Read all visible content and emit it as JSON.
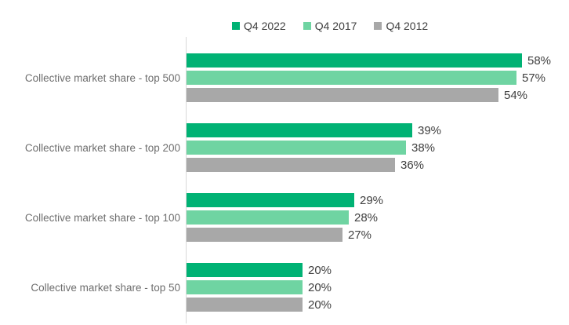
{
  "colors": {
    "background": "#ffffff",
    "axis_line": "#d9d9d9",
    "category_text": "#6e6e6e",
    "value_text": "#3f3f3f",
    "legend_text": "#404040",
    "series_q4_2022": "#00b274",
    "series_q4_2017": "#6fd4a2",
    "series_q4_2012": "#a8a8a8"
  },
  "chart_data": {
    "type": "bar",
    "orientation": "horizontal",
    "title": "",
    "categories": [
      "Collective market share - top 500",
      "Collective market share - top 200",
      "Collective market share - top 100",
      "Collective market share - top 50"
    ],
    "series": [
      {
        "name": "Q4 2022",
        "color": "#00b274",
        "values": [
          58,
          39,
          29,
          20
        ],
        "labels": [
          "58%",
          "39%",
          "29%",
          "20%"
        ]
      },
      {
        "name": "Q4 2017",
        "color": "#6fd4a2",
        "values": [
          57,
          38,
          28,
          20
        ],
        "labels": [
          "57%",
          "38%",
          "28%",
          "20%"
        ]
      },
      {
        "name": "Q4 2012",
        "color": "#a8a8a8",
        "values": [
          54,
          36,
          27,
          20
        ],
        "labels": [
          "54%",
          "36%",
          "27%",
          "20%"
        ]
      }
    ],
    "value_suffix": "%",
    "legend_position": "top",
    "grid": false
  }
}
